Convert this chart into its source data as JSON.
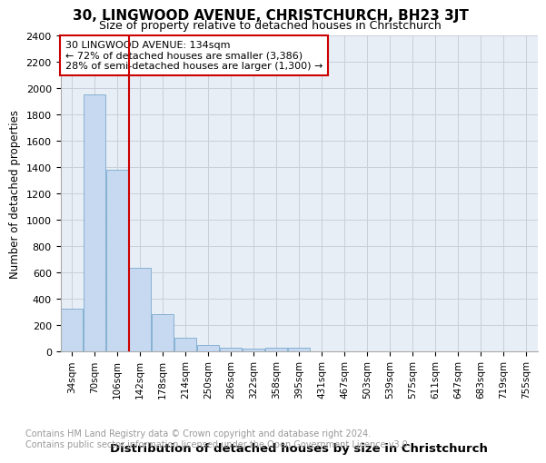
{
  "title1": "30, LINGWOOD AVENUE, CHRISTCHURCH, BH23 3JT",
  "title2": "Size of property relative to detached houses in Christchurch",
  "xlabel": "Distribution of detached houses by size in Christchurch",
  "ylabel": "Number of detached properties",
  "categories": [
    "34sqm",
    "70sqm",
    "106sqm",
    "142sqm",
    "178sqm",
    "214sqm",
    "250sqm",
    "286sqm",
    "322sqm",
    "358sqm",
    "395sqm",
    "431sqm",
    "467sqm",
    "503sqm",
    "539sqm",
    "575sqm",
    "611sqm",
    "647sqm",
    "683sqm",
    "719sqm",
    "755sqm"
  ],
  "values": [
    320,
    1950,
    1380,
    630,
    280,
    100,
    45,
    25,
    15,
    25,
    25,
    0,
    0,
    0,
    0,
    0,
    0,
    0,
    0,
    0,
    0
  ],
  "bar_color": "#c6d9f0",
  "bar_edge_color": "#7aaace",
  "annotation_text": "30 LINGWOOD AVENUE: 134sqm\n← 72% of detached houses are smaller (3,386)\n28% of semi-detached houses are larger (1,300) →",
  "annotation_box_color": "#ffffff",
  "annotation_box_edge": "#cc0000",
  "ylim": [
    0,
    2400
  ],
  "yticks": [
    0,
    200,
    400,
    600,
    800,
    1000,
    1200,
    1400,
    1600,
    1800,
    2000,
    2200,
    2400
  ],
  "grid_color": "#c8d0dc",
  "background_color": "#e8eef5",
  "footnote": "Contains HM Land Registry data © Crown copyright and database right 2024.\nContains public sector information licensed under the Open Government Licence v3.0.",
  "title1_fontsize": 11,
  "title2_fontsize": 9,
  "xlabel_fontsize": 9.5,
  "ylabel_fontsize": 8.5,
  "footnote_fontsize": 7
}
